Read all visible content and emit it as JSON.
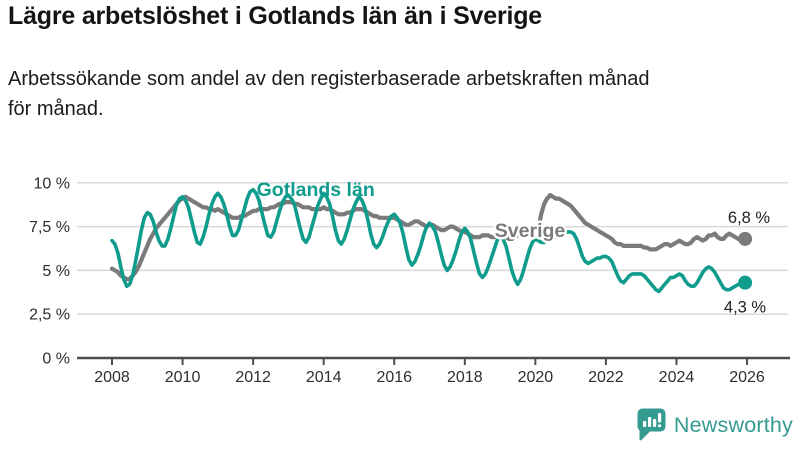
{
  "header": {
    "title": "Lägre arbetslöshet i Gotlands län än i Sverige",
    "subtitle": "Arbetssökande som andel av den registerbaserade arbetskraften månad för månad.",
    "subtitle_lines": [
      "Arbetssökande som andel av den registerbaserade arbetskraften månad",
      "för månad."
    ]
  },
  "chart_data": {
    "type": "line",
    "title": "Lägre arbetslöshet i Gotlands län än i Sverige",
    "subtitle": "Arbetssökande som andel av den registerbaserade arbetskraften månad för månad.",
    "frequency": "monthly",
    "x_start": "2008-01",
    "x_end": "2025-12",
    "xlabel": "",
    "ylabel": "",
    "ylim": [
      0,
      10.7
    ],
    "grid": "horizontal",
    "legend_position": "inline-labels",
    "yticks": [
      {
        "value": 0,
        "label": "0 %"
      },
      {
        "value": 2.5,
        "label": "2,5 %"
      },
      {
        "value": 5,
        "label": "5 %"
      },
      {
        "value": 7.5,
        "label": "7,5 %"
      },
      {
        "value": 10,
        "label": "10 %"
      }
    ],
    "xticks": [
      {
        "year": 2008,
        "label": "2008"
      },
      {
        "year": 2010,
        "label": "2010"
      },
      {
        "year": 2012,
        "label": "2012"
      },
      {
        "year": 2014,
        "label": "2014"
      },
      {
        "year": 2016,
        "label": "2016"
      },
      {
        "year": 2018,
        "label": "2018"
      },
      {
        "year": 2020,
        "label": "2020"
      },
      {
        "year": 2022,
        "label": "2022"
      },
      {
        "year": 2024,
        "label": "2024"
      },
      {
        "year": 2026,
        "label": "2026"
      }
    ],
    "series": [
      {
        "name": "Gotlands län",
        "color": "#109c8d",
        "end_value_label": "4,3 %",
        "values": [
          6.7,
          6.5,
          6.0,
          5.2,
          4.5,
          4.1,
          4.2,
          4.7,
          5.5,
          6.4,
          7.3,
          8.0,
          8.3,
          8.2,
          7.8,
          7.2,
          6.7,
          6.4,
          6.4,
          6.8,
          7.4,
          8.1,
          8.8,
          9.1,
          9.2,
          9.0,
          8.6,
          7.9,
          7.2,
          6.6,
          6.5,
          6.9,
          7.5,
          8.2,
          8.8,
          9.2,
          9.4,
          9.2,
          8.8,
          8.2,
          7.5,
          7.0,
          7.0,
          7.3,
          7.9,
          8.5,
          9.1,
          9.5,
          9.6,
          9.4,
          9.0,
          8.3,
          7.6,
          7.0,
          6.9,
          7.2,
          7.8,
          8.4,
          8.9,
          9.2,
          9.3,
          9.1,
          8.8,
          8.1,
          7.4,
          6.8,
          6.6,
          6.9,
          7.5,
          8.1,
          8.7,
          9.1,
          9.4,
          9.2,
          8.8,
          8.1,
          7.3,
          6.7,
          6.5,
          6.8,
          7.3,
          7.9,
          8.5,
          8.9,
          9.2,
          9.0,
          8.6,
          7.9,
          7.1,
          6.5,
          6.3,
          6.5,
          6.9,
          7.4,
          7.8,
          8.1,
          8.2,
          8.0,
          7.7,
          7.1,
          6.3,
          5.6,
          5.3,
          5.5,
          5.9,
          6.4,
          7.0,
          7.5,
          7.7,
          7.5,
          7.2,
          6.6,
          5.9,
          5.3,
          5.0,
          5.2,
          5.6,
          6.1,
          6.7,
          7.2,
          7.4,
          7.2,
          6.8,
          6.1,
          5.4,
          4.8,
          4.6,
          4.8,
          5.2,
          5.7,
          6.2,
          6.7,
          7.0,
          6.8,
          6.4,
          5.7,
          5.0,
          4.5,
          4.2,
          4.5,
          5.0,
          5.6,
          6.2,
          6.6,
          6.8,
          6.7,
          6.6,
          6.6,
          6.7,
          6.8,
          6.9,
          6.9,
          7.0,
          7.0,
          7.1,
          7.2,
          7.2,
          7.1,
          6.8,
          6.3,
          5.8,
          5.5,
          5.4,
          5.5,
          5.6,
          5.7,
          5.7,
          5.8,
          5.8,
          5.7,
          5.5,
          5.1,
          4.7,
          4.4,
          4.3,
          4.5,
          4.7,
          4.8,
          4.8,
          4.8,
          4.8,
          4.7,
          4.5,
          4.3,
          4.1,
          3.9,
          3.8,
          4.0,
          4.2,
          4.4,
          4.6,
          4.6,
          4.7,
          4.8,
          4.7,
          4.4,
          4.2,
          4.1,
          4.1,
          4.3,
          4.6,
          4.9,
          5.1,
          5.2,
          5.1,
          4.9,
          4.6,
          4.3,
          4.0,
          3.9,
          3.9,
          4.0,
          4.1,
          4.2,
          4.2,
          4.3
        ]
      },
      {
        "name": "Sverige",
        "color": "#7b7b7d",
        "end_value_label": "6,8 %",
        "values": [
          5.1,
          5.0,
          4.9,
          4.7,
          4.6,
          4.5,
          4.5,
          4.7,
          4.9,
          5.2,
          5.6,
          6.0,
          6.4,
          6.8,
          7.1,
          7.4,
          7.6,
          7.8,
          8.0,
          8.2,
          8.4,
          8.6,
          8.8,
          9.0,
          9.1,
          9.2,
          9.1,
          9.0,
          8.9,
          8.8,
          8.7,
          8.6,
          8.6,
          8.5,
          8.5,
          8.4,
          8.5,
          8.4,
          8.3,
          8.2,
          8.1,
          8.0,
          8.0,
          8.0,
          8.1,
          8.1,
          8.2,
          8.3,
          8.4,
          8.4,
          8.5,
          8.5,
          8.5,
          8.5,
          8.6,
          8.6,
          8.7,
          8.8,
          8.8,
          8.9,
          8.9,
          8.9,
          8.8,
          8.8,
          8.7,
          8.6,
          8.6,
          8.6,
          8.5,
          8.5,
          8.5,
          8.5,
          8.6,
          8.5,
          8.5,
          8.4,
          8.3,
          8.2,
          8.2,
          8.2,
          8.3,
          8.3,
          8.4,
          8.5,
          8.5,
          8.5,
          8.4,
          8.3,
          8.2,
          8.1,
          8.1,
          8.0,
          8.0,
          8.0,
          8.0,
          8.0,
          8.0,
          7.9,
          7.8,
          7.7,
          7.6,
          7.6,
          7.7,
          7.8,
          7.8,
          7.7,
          7.6,
          7.5,
          7.6,
          7.6,
          7.5,
          7.4,
          7.3,
          7.3,
          7.4,
          7.5,
          7.5,
          7.4,
          7.3,
          7.2,
          7.2,
          7.1,
          7.0,
          6.9,
          6.9,
          6.9,
          7.0,
          7.0,
          7.0,
          6.9,
          6.9,
          6.9,
          7.0,
          7.0,
          6.9,
          6.8,
          6.8,
          6.9,
          7.0,
          7.0,
          7.0,
          7.0,
          7.1,
          7.1,
          7.2,
          7.4,
          8.2,
          8.8,
          9.1,
          9.3,
          9.2,
          9.1,
          9.1,
          9.0,
          8.9,
          8.8,
          8.7,
          8.5,
          8.3,
          8.1,
          7.9,
          7.7,
          7.6,
          7.5,
          7.4,
          7.3,
          7.2,
          7.1,
          7.0,
          6.9,
          6.8,
          6.6,
          6.5,
          6.5,
          6.4,
          6.4,
          6.4,
          6.4,
          6.4,
          6.4,
          6.4,
          6.3,
          6.3,
          6.2,
          6.2,
          6.2,
          6.3,
          6.4,
          6.5,
          6.5,
          6.4,
          6.5,
          6.6,
          6.7,
          6.6,
          6.5,
          6.5,
          6.6,
          6.8,
          6.9,
          6.8,
          6.7,
          6.8,
          7.0,
          7.0,
          7.1,
          6.9,
          6.8,
          6.8,
          7.0,
          7.1,
          7.0,
          6.9,
          6.8,
          6.7,
          6.8
        ]
      }
    ],
    "annotations": {
      "gotland_label": "Gotlands län",
      "sverige_label": "Sverige",
      "gotland_end_value": "4,3 %",
      "sverige_end_value": "6,8 %"
    },
    "colors": {
      "gotland": "#109c8d",
      "sverige": "#7b7b7d",
      "grid": "#d8d8d8",
      "axis": "#4d4d4d",
      "tick_text": "#2e2e2e",
      "value_text": "#222222"
    }
  },
  "branding": {
    "logo_text": "Newsworthy",
    "logo_color": "#359a90"
  }
}
